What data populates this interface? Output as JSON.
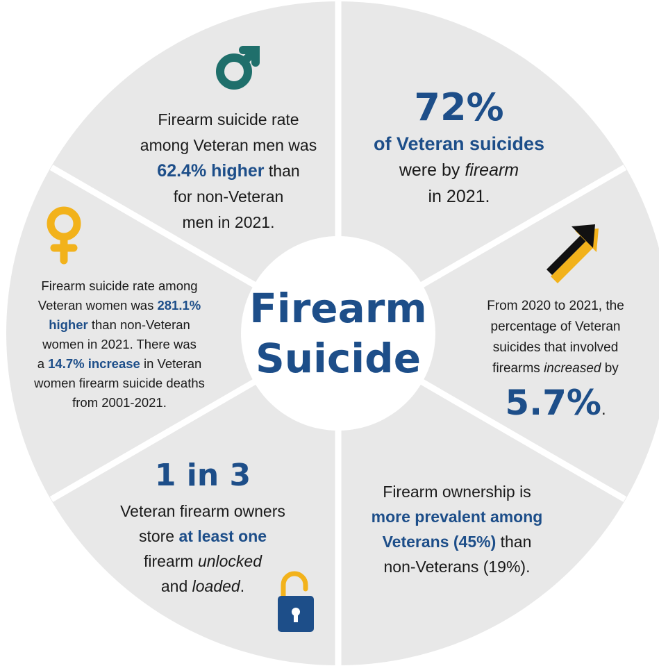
{
  "center": {
    "line1": "Firearm",
    "line2": "Suicide"
  },
  "segments": {
    "men": {
      "icon": "male-symbol-icon",
      "line1": "Firearm suicide rate",
      "line2": "among Veteran men was",
      "highlight": "62.4% higher",
      "line3_rest": " than",
      "line4": "for non-Veteran",
      "line5": "men in 2021."
    },
    "firearm_share": {
      "stat": "72%",
      "highlight": "of Veteran suicides",
      "line1_pre": "were by ",
      "line1_em": "firearm",
      "line2": "in 2021."
    },
    "increase": {
      "icon": "up-right-arrow-icon",
      "line1": "From 2020 to 2021, the",
      "line2": "percentage of Veteran",
      "line3": "suicides that involved",
      "line4_pre": "firearms ",
      "line4_em": "increased",
      "line4_post": " by",
      "stat": "5.7%",
      "stat_post": "."
    },
    "ownership": {
      "line1": "Firearm ownership is",
      "highlight1": "more prevalent among",
      "highlight2": "Veterans (45%)",
      "line3_post": " than",
      "line4": "non-Veterans (19%)."
    },
    "storage": {
      "stat": "1 in 3",
      "line1": "Veteran firearm owners",
      "line2_pre": "store ",
      "highlight": "at least one",
      "line3_pre": "firearm ",
      "line3_em": "unlocked",
      "line4_pre": "and ",
      "line4_em": "loaded",
      "line4_post": ".",
      "icon": "unlocked-padlock-icon"
    },
    "women": {
      "icon": "female-symbol-icon",
      "line1": "Firearm suicide rate among",
      "line2_pre": "Veteran women was ",
      "highlight1a": "281.1%",
      "highlight1b": "higher",
      "line3_post": " than non-Veteran",
      "line4": "women in 2021. There was",
      "line5_pre": "a ",
      "highlight2": "14.7% increase",
      "line5_post": " in Veteran",
      "line6": "women firearm suicide deaths",
      "line7": "from 2001-2021."
    }
  },
  "colors": {
    "segment_fill": "#e8e8e8",
    "accent_blue": "#1d4e89",
    "male_icon": "#1f6f6b",
    "female_icon": "#f2b21b",
    "lock_body": "#1d4e89",
    "lock_shackle": "#f2b21b"
  }
}
